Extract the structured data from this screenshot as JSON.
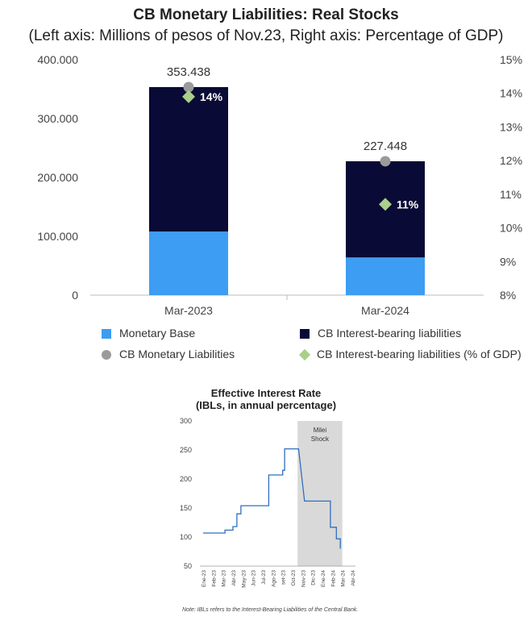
{
  "chart_data": [
    {
      "type": "bar",
      "title": "CB Monetary Liabilities: Real Stocks",
      "subtitle": "(Left axis: Millions of pesos of Nov.23,  Right axis: Percentage of GDP)",
      "categories": [
        "Mar-2023",
        "Mar-2024"
      ],
      "stacked": true,
      "series": [
        {
          "name": "Monetary Base",
          "values": [
            108000,
            64000
          ],
          "color": "#3d9df2",
          "kind": "bar"
        },
        {
          "name": "CB Interest-bearing liabilities",
          "values": [
            245438,
            163448
          ],
          "color": "#0a0a36",
          "kind": "bar"
        },
        {
          "name": "CB Monetary Liabilities",
          "values": [
            353438,
            227448
          ],
          "color": "#9b9b9b",
          "kind": "point",
          "labels": [
            "353.438",
            "227.448"
          ]
        },
        {
          "name": "CB Interest-bearing liabilities (% of GDP)",
          "values": [
            13.9,
            10.7
          ],
          "color": "#a9cf8a",
          "kind": "point",
          "axis": "right",
          "labels": [
            "14%",
            "11%"
          ]
        }
      ],
      "ylim": [
        0,
        400000
      ],
      "yticks": [
        "0",
        "100.000",
        "200.000",
        "300.000",
        "400.000"
      ],
      "y2lim": [
        8,
        15
      ],
      "y2ticks": [
        "8%",
        "9%",
        "10%",
        "11%",
        "12%",
        "13%",
        "14%",
        "15%"
      ],
      "legend": "bottom"
    },
    {
      "type": "line",
      "title": "Effective Interest Rate",
      "subtitle": "(IBLs, in annual percentage)",
      "color": "#2f6fbf",
      "x": [
        "Ene-23",
        "Feb-23",
        "Mar-23",
        "Abr-23",
        "May-23",
        "Jun-23",
        "Jul-23",
        "Ago-23",
        "set-23",
        "Oct-23",
        "Nov-23",
        "Dic-23",
        "Ene-24",
        "Feb-24",
        "Mar-24",
        "Abr-24"
      ],
      "steps": [
        [
          0.0,
          107
        ],
        [
          2.2,
          107
        ],
        [
          2.2,
          112
        ],
        [
          3.0,
          112
        ],
        [
          3.0,
          118
        ],
        [
          3.4,
          118
        ],
        [
          3.4,
          140
        ],
        [
          3.8,
          140
        ],
        [
          3.8,
          154
        ],
        [
          6.6,
          154
        ],
        [
          6.6,
          207
        ],
        [
          8.0,
          207
        ],
        [
          8.0,
          215
        ],
        [
          8.2,
          215
        ],
        [
          8.2,
          252
        ],
        [
          9.6,
          252
        ],
        [
          10.2,
          162
        ],
        [
          12.0,
          162
        ],
        [
          12.8,
          162
        ],
        [
          12.8,
          117
        ],
        [
          13.4,
          117
        ],
        [
          13.4,
          97
        ],
        [
          13.8,
          97
        ],
        [
          13.8,
          80
        ]
      ],
      "ylim": [
        50,
        300
      ],
      "yticks": [
        "50",
        "100",
        "150",
        "200",
        "250",
        "300"
      ],
      "shaded_range": [
        9.5,
        14.0
      ],
      "annotation": "Milei Shock",
      "note": "Note: IBLs refers to the Interest-Bearing Liabilities of the Central Bank."
    }
  ]
}
